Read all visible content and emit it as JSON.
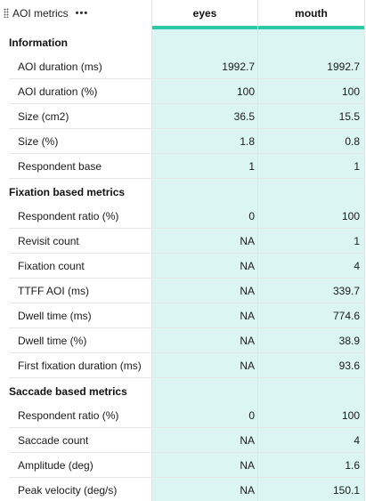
{
  "header": {
    "title": "AOI metrics",
    "more_label": "•••",
    "columns": [
      "eyes",
      "mouth"
    ],
    "accent_color": "#2ec7a6",
    "column_bg_color": "#dbf6f2"
  },
  "sections": [
    {
      "title": "Information",
      "rows": [
        {
          "label": "AOI duration (ms)",
          "values": [
            "1992.7",
            "1992.7"
          ]
        },
        {
          "label": "AOI duration (%)",
          "values": [
            "100",
            "100"
          ]
        },
        {
          "label": "Size (cm2)",
          "values": [
            "36.5",
            "15.5"
          ]
        },
        {
          "label": "Size (%)",
          "values": [
            "1.8",
            "0.8"
          ]
        },
        {
          "label": "Respondent base",
          "values": [
            "1",
            "1"
          ]
        }
      ]
    },
    {
      "title": "Fixation based metrics",
      "rows": [
        {
          "label": "Respondent ratio (%)",
          "values": [
            "0",
            "100"
          ]
        },
        {
          "label": "Revisit count",
          "values": [
            "NA",
            "1"
          ]
        },
        {
          "label": "Fixation count",
          "values": [
            "NA",
            "4"
          ]
        },
        {
          "label": "TTFF AOI (ms)",
          "values": [
            "NA",
            "339.7"
          ]
        },
        {
          "label": "Dwell time (ms)",
          "values": [
            "NA",
            "774.6"
          ]
        },
        {
          "label": "Dwell time (%)",
          "values": [
            "NA",
            "38.9"
          ]
        },
        {
          "label": "First fixation duration (ms)",
          "values": [
            "NA",
            "93.6"
          ]
        }
      ]
    },
    {
      "title": "Saccade based metrics",
      "rows": [
        {
          "label": "Respondent ratio (%)",
          "values": [
            "0",
            "100"
          ]
        },
        {
          "label": "Saccade count",
          "values": [
            "NA",
            "4"
          ]
        },
        {
          "label": "Amplitude (deg)",
          "values": [
            "NA",
            "1.6"
          ]
        },
        {
          "label": "Peak velocity (deg/s)",
          "values": [
            "NA",
            "150.1"
          ]
        }
      ]
    }
  ]
}
